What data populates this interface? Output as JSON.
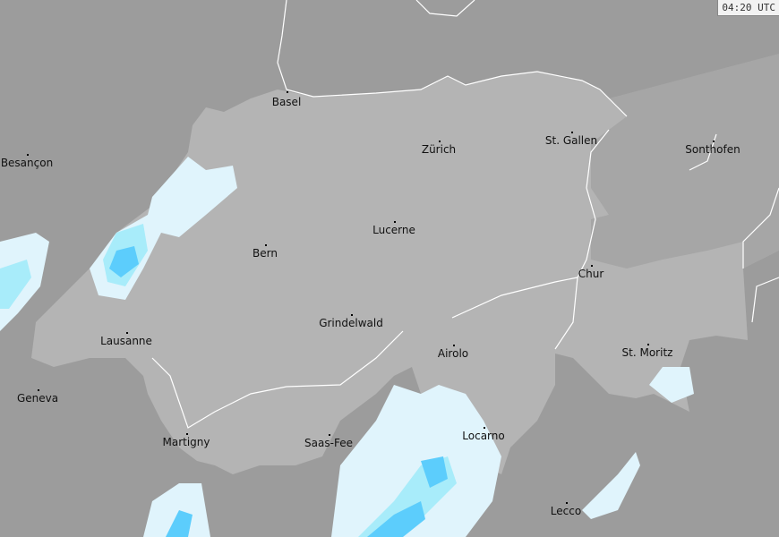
{
  "timestamp": "04:20 UTC",
  "colors": {
    "background": "#9c9c9c",
    "switzerland": "#b4b4b4",
    "borders": "#ffffff",
    "precip_light": "#e0f4fc",
    "precip_moderate": "#a8ecfa",
    "precip_heavy": "#5ccdfc",
    "precip_very_heavy": "#30a0f0"
  },
  "cities": [
    {
      "name": "Basel"
    },
    {
      "name": "Zürich"
    },
    {
      "name": "St. Gallen"
    },
    {
      "name": "Besançon"
    },
    {
      "name": "Sonthofen"
    },
    {
      "name": "Lucerne"
    },
    {
      "name": "Bern"
    },
    {
      "name": "Chur"
    },
    {
      "name": "Grindelwald"
    },
    {
      "name": "Lausanne"
    },
    {
      "name": "Airolo"
    },
    {
      "name": "St. Moritz"
    },
    {
      "name": "Geneva"
    },
    {
      "name": "Locarno"
    },
    {
      "name": "Martigny"
    },
    {
      "name": "Saas-Fee"
    },
    {
      "name": "Lecco"
    }
  ]
}
